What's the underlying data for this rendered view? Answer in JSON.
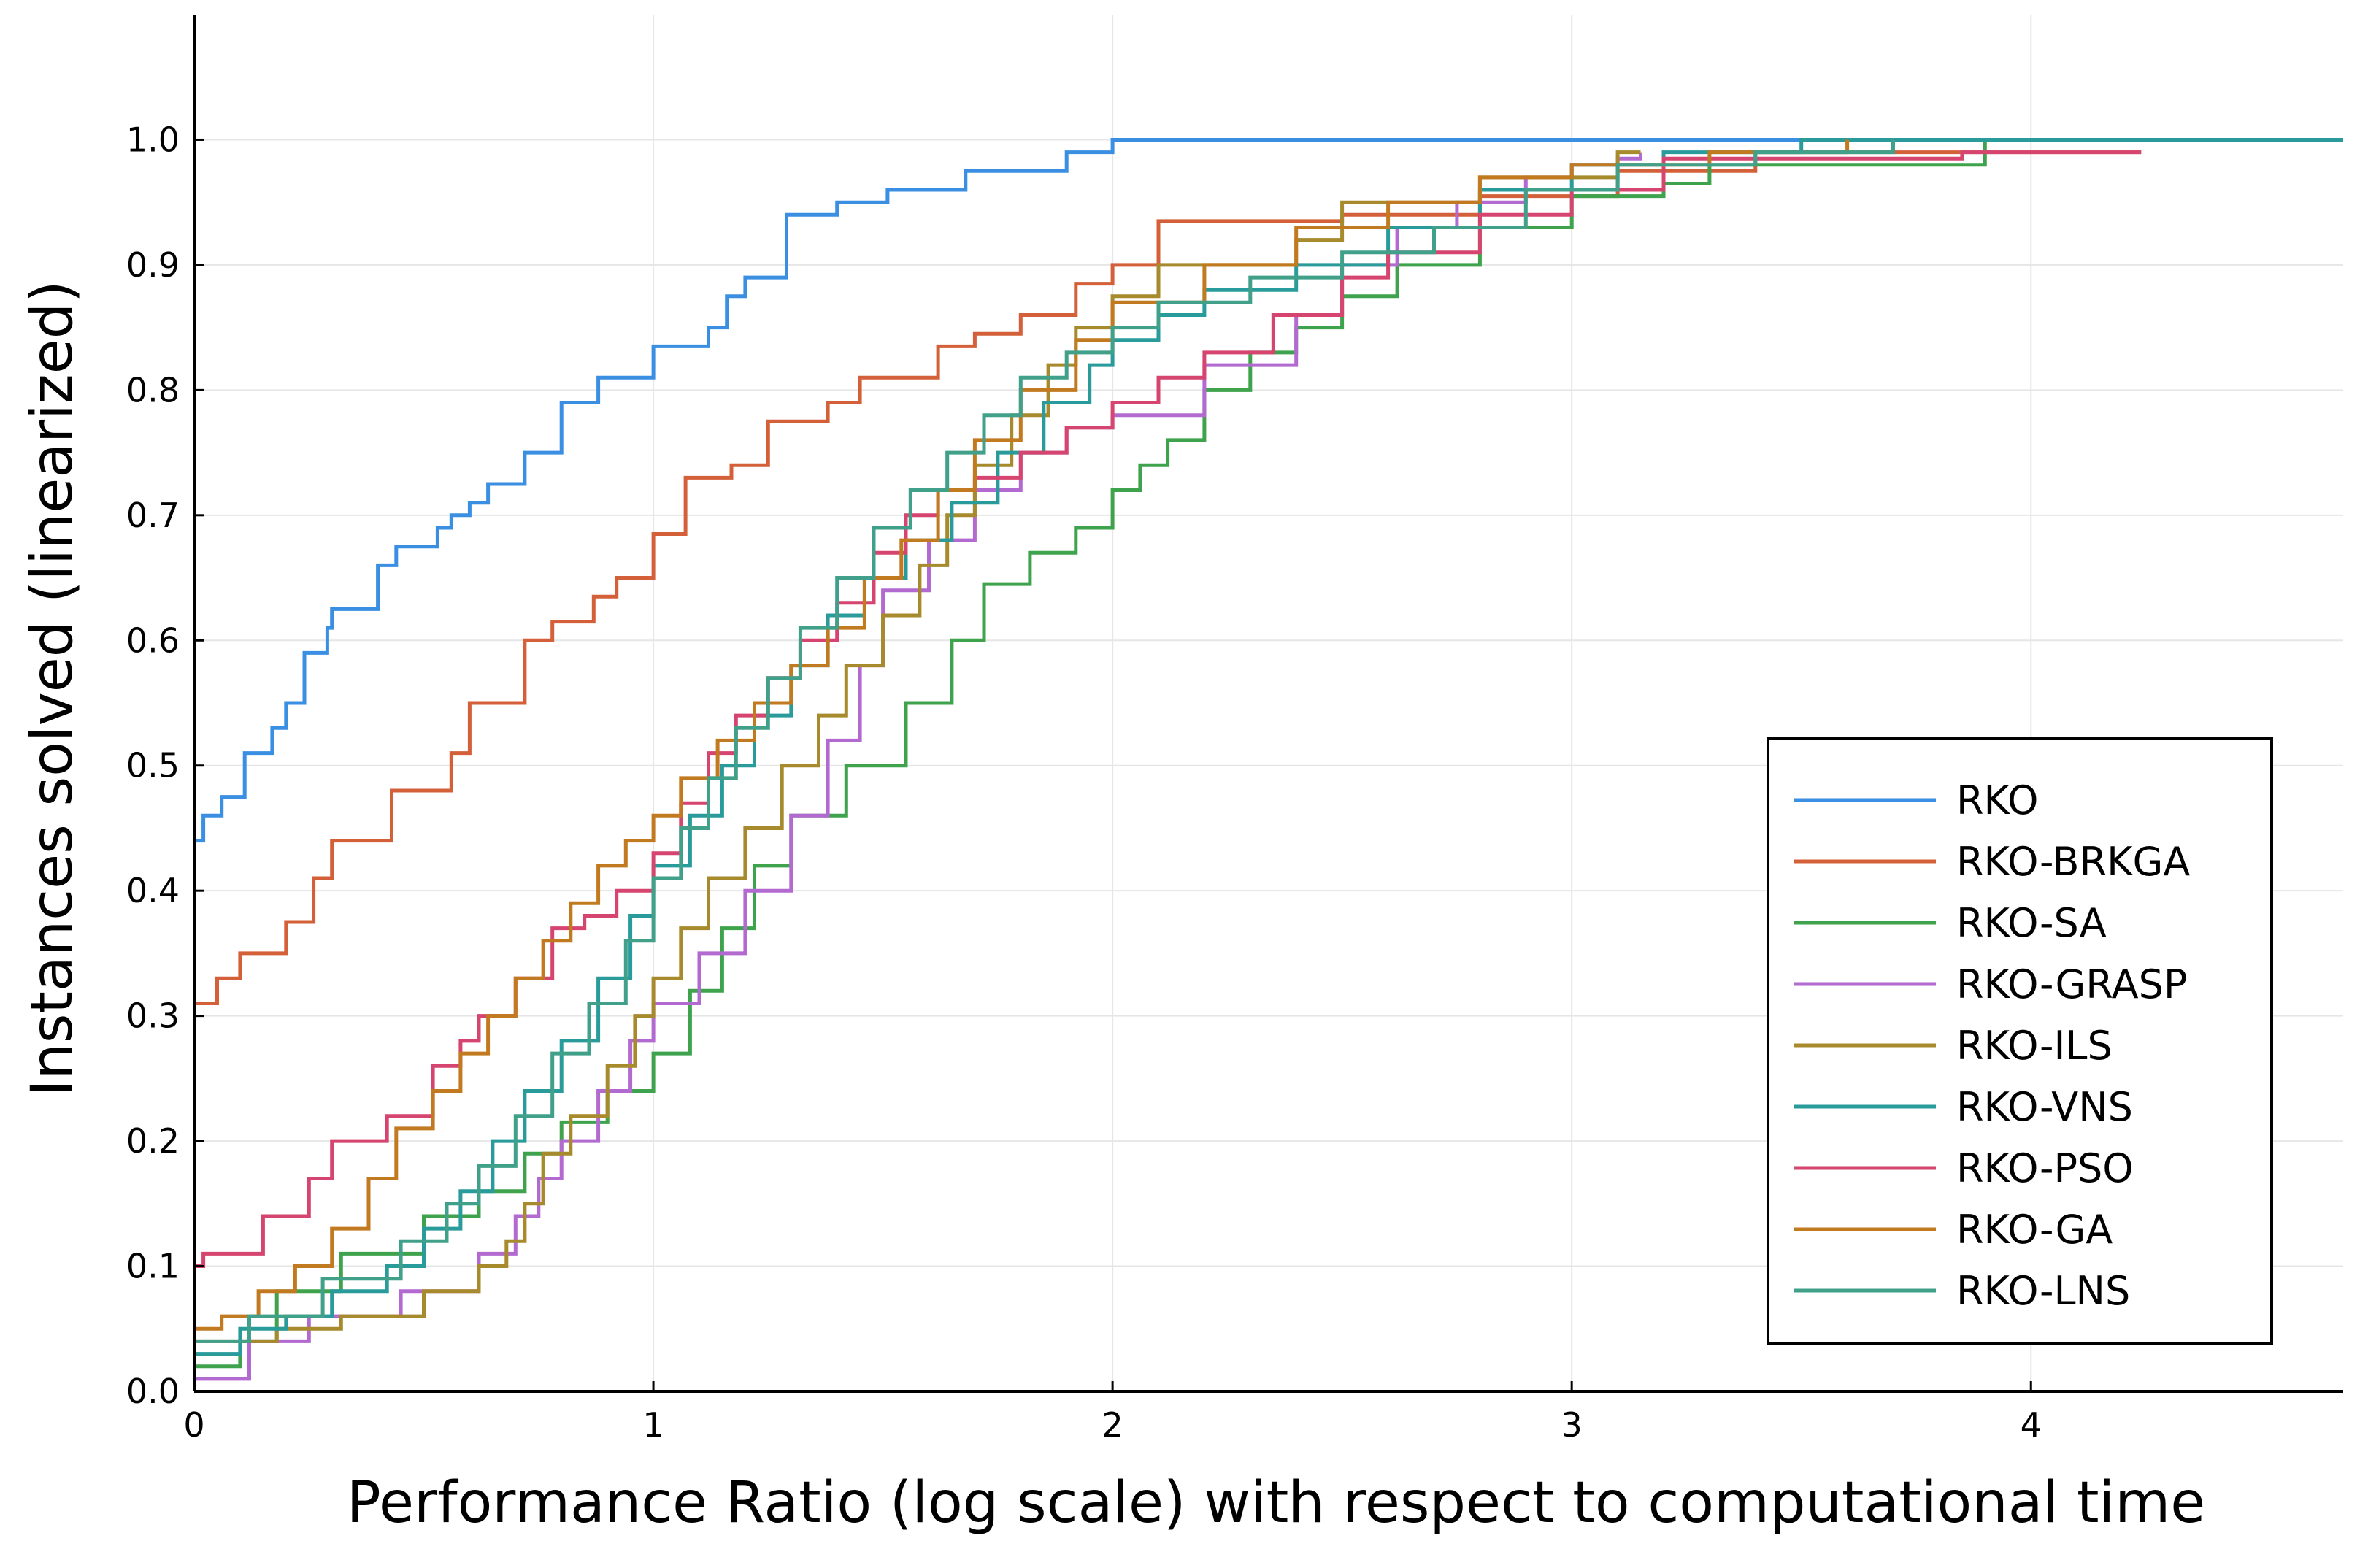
{
  "chart_data": {
    "type": "line",
    "step": true,
    "title": "",
    "xlabel": "Performance Ratio (log scale) with respect to computational time",
    "ylabel": "Instances solved (linearized)",
    "xlim": [
      0,
      4.68
    ],
    "ylim": [
      0,
      1.1
    ],
    "xticks": [
      0,
      1,
      2,
      3,
      4
    ],
    "xtick_labels": [
      "0",
      "1",
      "2",
      "3",
      "4"
    ],
    "yticks": [
      0.0,
      0.1,
      0.2,
      0.3,
      0.4,
      0.5,
      0.6,
      0.7,
      0.8,
      0.9,
      1.0
    ],
    "ytick_labels": [
      "0.0",
      "0.1",
      "0.2",
      "0.3",
      "0.4",
      "0.5",
      "0.6",
      "0.7",
      "0.8",
      "0.9",
      "1.0"
    ],
    "grid": true,
    "legend_position": "bottom-right",
    "series": [
      {
        "name": "RKO",
        "color": "#3b8fe3",
        "x": [
          0,
          0.02,
          0.06,
          0.11,
          0.17,
          0.2,
          0.24,
          0.29,
          0.3,
          0.4,
          0.44,
          0.53,
          0.56,
          0.6,
          0.64,
          0.72,
          0.8,
          0.88,
          1.0,
          1.12,
          1.16,
          1.2,
          1.29,
          1.4,
          1.51,
          1.68,
          1.9,
          2.0,
          4.68
        ],
        "y": [
          0.44,
          0.46,
          0.475,
          0.51,
          0.53,
          0.55,
          0.59,
          0.61,
          0.625,
          0.66,
          0.675,
          0.69,
          0.7,
          0.71,
          0.725,
          0.75,
          0.79,
          0.81,
          0.835,
          0.85,
          0.875,
          0.89,
          0.94,
          0.95,
          0.96,
          0.975,
          0.99,
          1.0,
          1.0
        ]
      },
      {
        "name": "RKO-BRKGA",
        "color": "#d4603a",
        "x": [
          0,
          0.05,
          0.1,
          0.2,
          0.26,
          0.3,
          0.43,
          0.56,
          0.6,
          0.72,
          0.78,
          0.87,
          0.92,
          1.0,
          1.07,
          1.17,
          1.25,
          1.38,
          1.45,
          1.62,
          1.7,
          1.8,
          1.92,
          2.0,
          2.1,
          2.5,
          2.8,
          3.1,
          3.4,
          4.24
        ],
        "y": [
          0.31,
          0.33,
          0.35,
          0.375,
          0.41,
          0.44,
          0.48,
          0.51,
          0.55,
          0.6,
          0.615,
          0.635,
          0.65,
          0.685,
          0.73,
          0.74,
          0.775,
          0.79,
          0.81,
          0.835,
          0.845,
          0.86,
          0.885,
          0.9,
          0.935,
          0.94,
          0.955,
          0.975,
          0.99,
          0.99
        ]
      },
      {
        "name": "RKO-SA",
        "color": "#3fa34d",
        "x": [
          0,
          0.1,
          0.18,
          0.32,
          0.5,
          0.62,
          0.72,
          0.8,
          0.9,
          1.0,
          1.08,
          1.15,
          1.22,
          1.3,
          1.42,
          1.55,
          1.65,
          1.72,
          1.82,
          1.92,
          2.0,
          2.06,
          2.12,
          2.2,
          2.3,
          2.4,
          2.5,
          2.62,
          2.8,
          3.0,
          3.2,
          3.3,
          3.9,
          4.68
        ],
        "y": [
          0.02,
          0.04,
          0.08,
          0.11,
          0.14,
          0.16,
          0.19,
          0.215,
          0.24,
          0.27,
          0.32,
          0.37,
          0.42,
          0.46,
          0.5,
          0.55,
          0.6,
          0.645,
          0.67,
          0.69,
          0.72,
          0.74,
          0.76,
          0.8,
          0.83,
          0.85,
          0.875,
          0.9,
          0.93,
          0.955,
          0.965,
          0.98,
          1.0,
          1.0
        ]
      },
      {
        "name": "RKO-GRASP",
        "color": "#b36ad0",
        "x": [
          0,
          0.12,
          0.25,
          0.45,
          0.62,
          0.7,
          0.75,
          0.8,
          0.88,
          0.95,
          1.0,
          1.1,
          1.2,
          1.3,
          1.38,
          1.45,
          1.5,
          1.6,
          1.7,
          1.8,
          1.9,
          2.0,
          2.2,
          2.4,
          2.5,
          2.62,
          2.75,
          2.9,
          3.0,
          3.1,
          3.15
        ],
        "y": [
          0.01,
          0.04,
          0.06,
          0.08,
          0.11,
          0.14,
          0.17,
          0.2,
          0.24,
          0.28,
          0.31,
          0.35,
          0.4,
          0.46,
          0.52,
          0.58,
          0.64,
          0.68,
          0.72,
          0.75,
          0.77,
          0.78,
          0.82,
          0.86,
          0.9,
          0.93,
          0.95,
          0.97,
          0.98,
          0.985,
          0.99
        ]
      },
      {
        "name": "RKO-ILS",
        "color": "#a68a2c",
        "x": [
          0,
          0.18,
          0.32,
          0.5,
          0.62,
          0.68,
          0.72,
          0.76,
          0.82,
          0.9,
          0.96,
          1.0,
          1.06,
          1.12,
          1.2,
          1.28,
          1.36,
          1.42,
          1.5,
          1.58,
          1.64,
          1.7,
          1.78,
          1.86,
          1.92,
          2.0,
          2.1,
          2.4,
          2.5,
          2.8,
          3.1,
          3.15
        ],
        "y": [
          0.04,
          0.05,
          0.06,
          0.08,
          0.1,
          0.12,
          0.15,
          0.19,
          0.22,
          0.26,
          0.3,
          0.33,
          0.37,
          0.41,
          0.45,
          0.5,
          0.54,
          0.58,
          0.62,
          0.66,
          0.7,
          0.74,
          0.78,
          0.82,
          0.85,
          0.875,
          0.9,
          0.92,
          0.95,
          0.97,
          0.99,
          0.99
        ]
      },
      {
        "name": "RKO-VNS",
        "color": "#2a9b9b",
        "x": [
          0,
          0.1,
          0.2,
          0.3,
          0.42,
          0.5,
          0.58,
          0.65,
          0.72,
          0.8,
          0.88,
          0.95,
          1.0,
          1.08,
          1.15,
          1.22,
          1.3,
          1.38,
          1.46,
          1.55,
          1.65,
          1.75,
          1.85,
          1.95,
          2.0,
          2.1,
          2.2,
          2.4,
          2.6,
          2.8,
          3.0,
          3.2,
          3.5,
          4.68
        ],
        "y": [
          0.03,
          0.05,
          0.06,
          0.08,
          0.1,
          0.13,
          0.16,
          0.2,
          0.24,
          0.28,
          0.33,
          0.38,
          0.42,
          0.46,
          0.5,
          0.54,
          0.58,
          0.62,
          0.65,
          0.68,
          0.71,
          0.75,
          0.79,
          0.82,
          0.84,
          0.86,
          0.88,
          0.9,
          0.93,
          0.96,
          0.98,
          0.99,
          1.0,
          1.0
        ]
      },
      {
        "name": "RKO-PSO",
        "color": "#d6456f",
        "x": [
          0,
          0.02,
          0.15,
          0.25,
          0.3,
          0.42,
          0.52,
          0.58,
          0.62,
          0.7,
          0.78,
          0.85,
          0.92,
          1.0,
          1.06,
          1.12,
          1.18,
          1.25,
          1.32,
          1.4,
          1.48,
          1.55,
          1.62,
          1.7,
          1.8,
          1.9,
          2.0,
          2.1,
          2.2,
          2.35,
          2.5,
          2.6,
          2.8,
          3.0,
          3.2,
          3.85,
          4.24
        ],
        "y": [
          0.1,
          0.11,
          0.14,
          0.17,
          0.2,
          0.22,
          0.26,
          0.28,
          0.3,
          0.33,
          0.37,
          0.38,
          0.4,
          0.43,
          0.47,
          0.51,
          0.54,
          0.57,
          0.6,
          0.63,
          0.67,
          0.7,
          0.72,
          0.73,
          0.75,
          0.77,
          0.79,
          0.81,
          0.83,
          0.86,
          0.89,
          0.91,
          0.94,
          0.96,
          0.985,
          0.99,
          0.99
        ]
      },
      {
        "name": "RKO-GA",
        "color": "#c27a20",
        "x": [
          0,
          0.06,
          0.14,
          0.22,
          0.3,
          0.38,
          0.44,
          0.52,
          0.58,
          0.64,
          0.7,
          0.76,
          0.82,
          0.88,
          0.94,
          1.0,
          1.06,
          1.14,
          1.22,
          1.3,
          1.38,
          1.46,
          1.54,
          1.62,
          1.7,
          1.8,
          1.92,
          2.0,
          2.2,
          2.4,
          2.6,
          2.8,
          3.0,
          3.3,
          3.6
        ],
        "y": [
          0.05,
          0.06,
          0.08,
          0.1,
          0.13,
          0.17,
          0.21,
          0.24,
          0.27,
          0.3,
          0.33,
          0.36,
          0.39,
          0.42,
          0.44,
          0.46,
          0.49,
          0.52,
          0.55,
          0.58,
          0.61,
          0.65,
          0.68,
          0.72,
          0.76,
          0.8,
          0.84,
          0.87,
          0.9,
          0.93,
          0.95,
          0.97,
          0.98,
          0.99,
          1.0
        ]
      },
      {
        "name": "RKO-LNS",
        "color": "#40a08a",
        "x": [
          0,
          0.12,
          0.28,
          0.45,
          0.55,
          0.62,
          0.7,
          0.78,
          0.86,
          0.94,
          1.0,
          1.06,
          1.12,
          1.18,
          1.25,
          1.32,
          1.4,
          1.48,
          1.56,
          1.64,
          1.72,
          1.8,
          1.9,
          2.0,
          2.1,
          2.3,
          2.5,
          2.7,
          2.9,
          3.1,
          3.4,
          3.7
        ],
        "y": [
          0.04,
          0.06,
          0.09,
          0.12,
          0.15,
          0.18,
          0.22,
          0.27,
          0.31,
          0.36,
          0.41,
          0.45,
          0.49,
          0.53,
          0.57,
          0.61,
          0.65,
          0.69,
          0.72,
          0.75,
          0.78,
          0.81,
          0.83,
          0.85,
          0.87,
          0.89,
          0.91,
          0.93,
          0.96,
          0.98,
          0.99,
          1.0
        ]
      }
    ]
  }
}
